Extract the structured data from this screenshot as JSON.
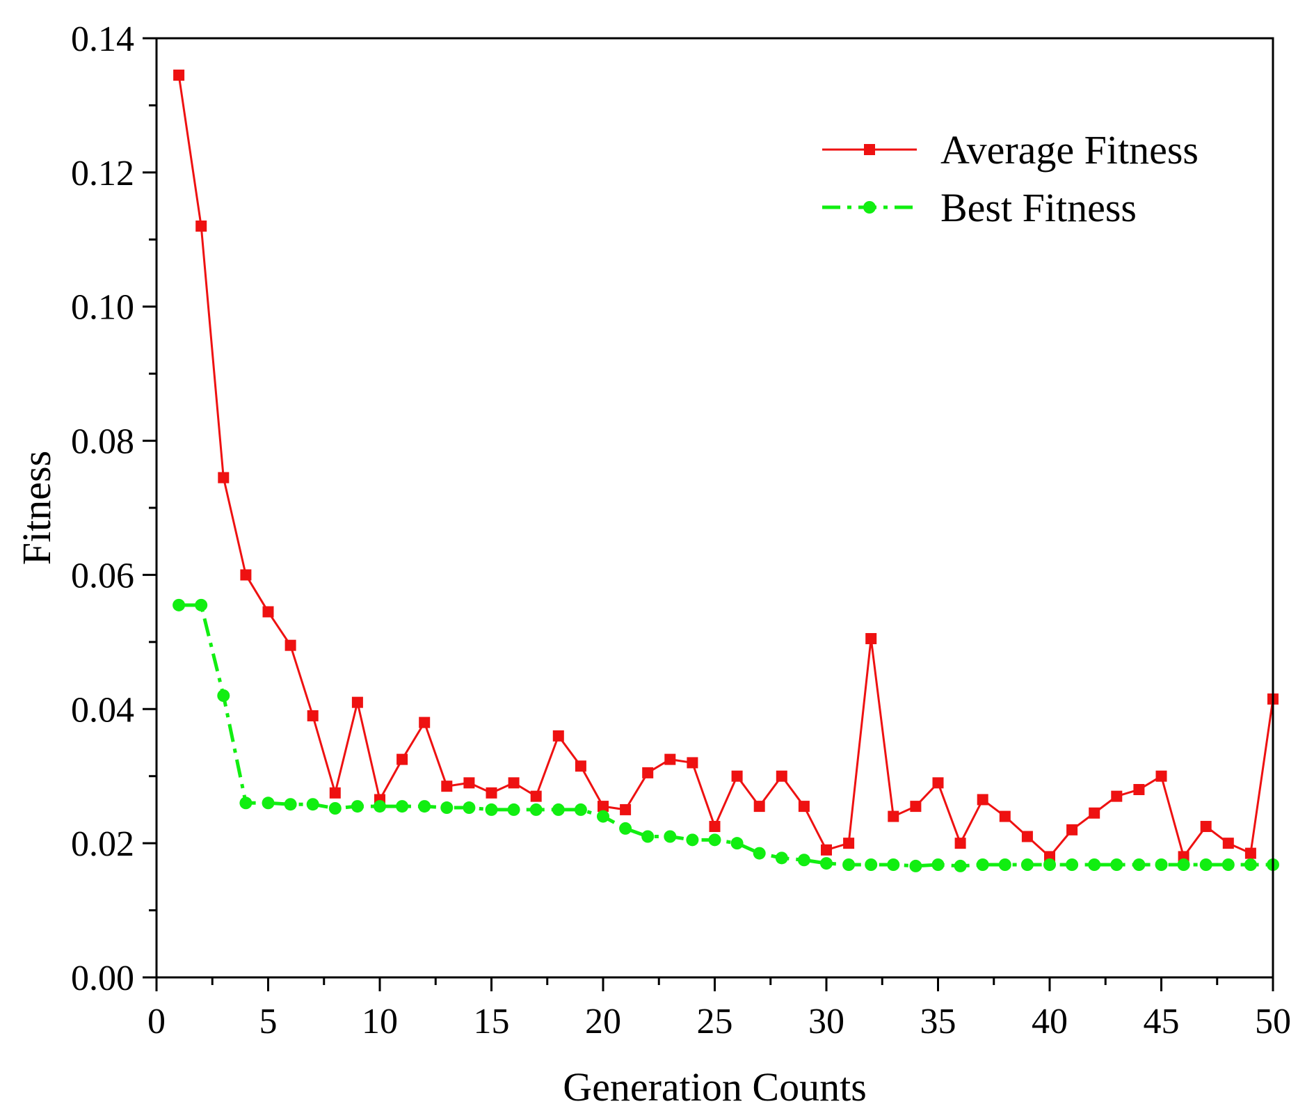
{
  "chart_data": {
    "type": "line",
    "title": "",
    "xlabel": "Generation Counts",
    "ylabel": "Fitness",
    "xlim": [
      0,
      50
    ],
    "ylim": [
      0,
      0.14
    ],
    "xticks": [
      0,
      5,
      10,
      15,
      20,
      25,
      30,
      35,
      40,
      45,
      50
    ],
    "xtick_labels": [
      "0",
      "5",
      "10",
      "15",
      "20",
      "25",
      "30",
      "35",
      "40",
      "45",
      "50"
    ],
    "yticks": [
      0,
      0.02,
      0.04,
      0.06,
      0.08,
      0.1,
      0.12,
      0.14
    ],
    "ytick_labels": [
      "0.00",
      "0.02",
      "0.04",
      "0.06",
      "0.08",
      "0.10",
      "0.12",
      "0.14"
    ],
    "grid": false,
    "legend_position": "top-right",
    "x": [
      1,
      2,
      3,
      4,
      5,
      6,
      7,
      8,
      9,
      10,
      11,
      12,
      13,
      14,
      15,
      16,
      17,
      18,
      19,
      20,
      21,
      22,
      23,
      24,
      25,
      26,
      27,
      28,
      29,
      30,
      31,
      32,
      33,
      34,
      35,
      36,
      37,
      38,
      39,
      40,
      41,
      42,
      43,
      44,
      45,
      46,
      47,
      48,
      49,
      50
    ],
    "series": [
      {
        "name": "Average Fitness",
        "color": "#ee1111",
        "marker": "square",
        "line_style": "solid",
        "values": [
          0.1345,
          0.112,
          0.0745,
          0.06,
          0.0545,
          0.0495,
          0.039,
          0.0275,
          0.041,
          0.0265,
          0.0325,
          0.038,
          0.0285,
          0.029,
          0.0275,
          0.029,
          0.027,
          0.036,
          0.0315,
          0.0255,
          0.025,
          0.0305,
          0.0325,
          0.032,
          0.0225,
          0.03,
          0.0255,
          0.03,
          0.0255,
          0.019,
          0.02,
          0.0505,
          0.024,
          0.0255,
          0.029,
          0.02,
          0.0265,
          0.024,
          0.021,
          0.018,
          0.022,
          0.0245,
          0.027,
          0.028,
          0.03,
          0.018,
          0.0225,
          0.02,
          0.0185,
          0.0415
        ]
      },
      {
        "name": "Best Fitness",
        "color": "#11ee11",
        "marker": "circle",
        "line_style": "dash-dot",
        "values": [
          0.0555,
          0.0555,
          0.042,
          0.026,
          0.026,
          0.0258,
          0.0258,
          0.0252,
          0.0255,
          0.0255,
          0.0255,
          0.0255,
          0.0253,
          0.0253,
          0.025,
          0.025,
          0.025,
          0.025,
          0.025,
          0.024,
          0.0222,
          0.021,
          0.021,
          0.0205,
          0.0205,
          0.02,
          0.0185,
          0.0178,
          0.0175,
          0.017,
          0.0168,
          0.0168,
          0.0168,
          0.0166,
          0.0168,
          0.0166,
          0.0168,
          0.0168,
          0.0168,
          0.0168,
          0.0168,
          0.0168,
          0.0168,
          0.0168,
          0.0168,
          0.0168,
          0.0168,
          0.0168,
          0.0168,
          0.0168
        ]
      }
    ]
  }
}
